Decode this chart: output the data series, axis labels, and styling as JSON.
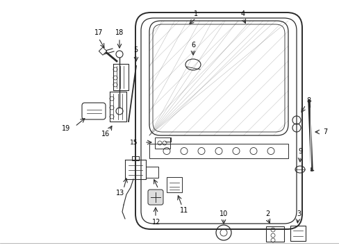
{
  "background_color": "#ffffff",
  "line_color": "#2a2a2a",
  "text_color": "#000000",
  "figure_width": 4.89,
  "figure_height": 3.6,
  "dpi": 100
}
